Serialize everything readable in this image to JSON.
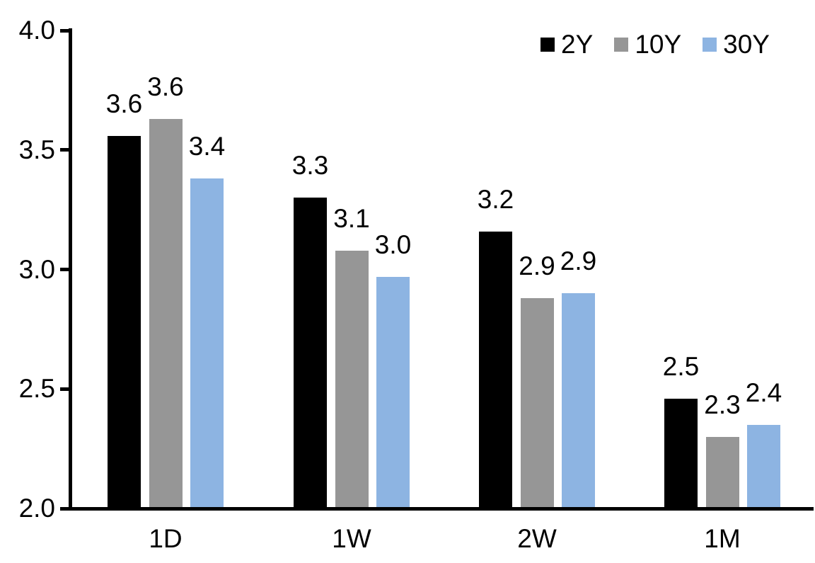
{
  "chart_data": {
    "type": "bar",
    "title": "",
    "categories": [
      "1D",
      "1W",
      "2W",
      "1M"
    ],
    "series": [
      {
        "name": "2Y",
        "color": "#000000",
        "values": [
          3.56,
          3.3,
          3.16,
          2.46
        ],
        "data_labels": [
          "3.6",
          "3.3",
          "3.2",
          "2.5"
        ]
      },
      {
        "name": "10Y",
        "color": "#969696",
        "values": [
          3.63,
          3.08,
          2.88,
          2.3
        ],
        "data_labels": [
          "3.6",
          "3.1",
          "2.9",
          "2.3"
        ]
      },
      {
        "name": "30Y",
        "color": "#8DB4E2",
        "values": [
          3.38,
          2.97,
          2.9,
          2.35
        ],
        "data_labels": [
          "3.4",
          "3.0",
          "2.9",
          "2.4"
        ]
      }
    ],
    "y_axis": {
      "min": 2.0,
      "max": 4.0,
      "tick_step": 0.5,
      "tick_labels": [
        "4.0",
        "3.5",
        "3.0",
        "2.5",
        "2.0"
      ]
    },
    "x_axis": {
      "tick_labels": [
        "1D",
        "1W",
        "2W",
        "1M"
      ]
    },
    "legend": {
      "position": "top-right",
      "entries": [
        "2Y",
        "10Y",
        "30Y"
      ]
    },
    "grid": false,
    "axis_color": "#000000",
    "background_color": "#FFFFFF"
  }
}
